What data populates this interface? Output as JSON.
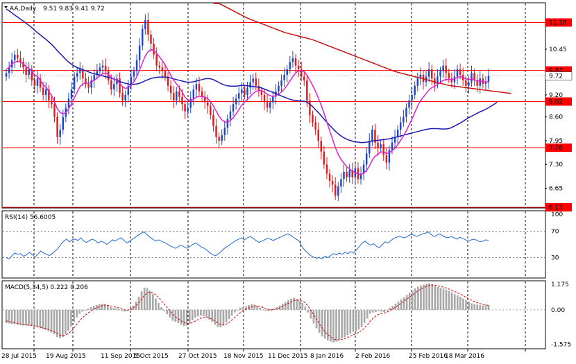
{
  "chart_data": [
    {
      "type": "candlestick",
      "title": "AA,Daily",
      "ohlc_text": "9.51 9.83 9.41 9.72",
      "ylim": [
        6.13,
        11.7
      ],
      "y_ticks": [
        11.18,
        10.45,
        9.87,
        9.72,
        9.2,
        9.02,
        8.6,
        7.95,
        7.76,
        7.3,
        6.65,
        6.13
      ],
      "plain_ticks": [
        "10.45",
        "9.20",
        "8.60",
        "7.95",
        "7.30",
        "6.65"
      ],
      "levels": [
        {
          "value": 11.18,
          "label": "11.18"
        },
        {
          "value": 9.87,
          "label": "9.87"
        },
        {
          "value": 9.02,
          "label": "9.02"
        },
        {
          "value": 7.76,
          "label": "7.76"
        },
        {
          "value": 6.13,
          "label": "6.13"
        }
      ],
      "current_price": {
        "value": 9.72,
        "label": "9.72"
      },
      "x_labels": [
        "28 Jul 2015",
        "19 Aug 2015",
        "11 Sep 2015",
        "5 Oct 2015",
        "27 Oct 2015",
        "18 Nov 2015",
        "11 Dec 2015",
        "8 Jan 2016",
        "2 Feb 2016",
        "25 Feb 2016",
        "18 Mar 2016"
      ],
      "colors": {
        "up": "#1e44c8",
        "down": "#e11919",
        "ma_fast": "#e020d0",
        "ma_mid": "#1a1ab4",
        "ma_slow": "#cc1111",
        "level": "#ff0000"
      },
      "closes": [
        9.8,
        9.95,
        10.15,
        10.3,
        10.2,
        10.1,
        9.95,
        9.75,
        9.9,
        9.6,
        9.45,
        9.65,
        9.4,
        9.2,
        9.35,
        9.05,
        8.95,
        8.6,
        8.05,
        8.25,
        8.6,
        8.85,
        9.1,
        9.35,
        9.7,
        9.8,
        9.9,
        9.65,
        9.5,
        9.4,
        9.6,
        9.75,
        9.85,
        9.95,
        10.0,
        9.85,
        9.6,
        9.35,
        9.5,
        9.65,
        9.25,
        9.05,
        9.2,
        9.45,
        9.7,
        9.85,
        10.15,
        10.55,
        11.0,
        11.25,
        10.85,
        10.6,
        10.3,
        10.0,
        9.95,
        9.85,
        9.7,
        9.45,
        9.25,
        9.05,
        9.3,
        9.15,
        8.95,
        8.75,
        8.85,
        9.1,
        9.35,
        9.5,
        9.3,
        9.15,
        9.0,
        8.9,
        8.65,
        8.35,
        8.05,
        7.95,
        8.1,
        8.3,
        8.55,
        8.75,
        8.95,
        9.1,
        9.25,
        9.35,
        9.2,
        9.4,
        9.55,
        9.65,
        9.45,
        9.3,
        9.2,
        9.0,
        8.85,
        9.0,
        9.15,
        9.3,
        9.45,
        9.6,
        9.75,
        9.9,
        10.1,
        10.2,
        10.0,
        9.9,
        9.7,
        9.6,
        9.05,
        8.65,
        8.45,
        8.25,
        7.95,
        7.65,
        7.3,
        7.05,
        6.85,
        6.75,
        6.45,
        6.7,
        6.9,
        7.1,
        6.95,
        7.15,
        6.95,
        7.2,
        6.9,
        7.05,
        7.3,
        7.6,
        7.95,
        8.25,
        7.9,
        7.75,
        7.85,
        7.55,
        7.35,
        7.7,
        7.9,
        8.05,
        8.25,
        8.45,
        8.6,
        8.85,
        9.05,
        9.2,
        9.45,
        9.65,
        9.75,
        9.55,
        9.7,
        9.9,
        9.65,
        9.5,
        9.7,
        9.85,
        10.0,
        9.8,
        9.65,
        9.55,
        9.7,
        9.9,
        9.75,
        9.6,
        9.45,
        9.55,
        9.8,
        9.6,
        9.45,
        9.65,
        9.5,
        9.55,
        9.72
      ],
      "ma_fast": [
        9.9,
        9.95,
        10.05,
        10.1,
        10.12,
        10.1,
        10.05,
        9.97,
        9.93,
        9.85,
        9.75,
        9.7,
        9.6,
        9.48,
        9.42,
        9.3,
        9.18,
        9.02,
        8.82,
        8.72,
        8.68,
        8.72,
        8.82,
        8.96,
        9.12,
        9.28,
        9.43,
        9.5,
        9.53,
        9.52,
        9.55,
        9.6,
        9.66,
        9.72,
        9.78,
        9.8,
        9.76,
        9.68,
        9.62,
        9.6,
        9.52,
        9.42,
        9.38,
        9.4,
        9.47,
        9.56,
        9.7,
        9.88,
        10.08,
        10.26,
        10.38,
        10.44,
        10.42,
        10.34,
        10.24,
        10.14,
        10.02,
        9.88,
        9.74,
        9.6,
        9.5,
        9.4,
        9.28,
        9.14,
        9.06,
        9.04,
        9.08,
        9.14,
        9.16,
        9.16,
        9.14,
        9.1,
        9.02,
        8.9,
        8.76,
        8.62,
        8.52,
        8.46,
        8.46,
        8.5,
        8.58,
        8.68,
        8.8,
        8.92,
        9.0,
        9.08,
        9.16,
        9.24,
        9.3,
        9.32,
        9.32,
        9.28,
        9.22,
        9.18,
        9.16,
        9.18,
        9.22,
        9.28,
        9.36,
        9.46,
        9.58,
        9.7,
        9.8,
        9.86,
        9.86,
        9.84,
        9.74,
        9.6,
        9.46,
        9.3,
        9.12,
        8.92,
        8.7,
        8.46,
        8.22,
        8.0,
        7.76,
        7.58,
        7.44,
        7.34,
        7.24,
        7.18,
        7.12,
        7.08,
        7.04,
        7.03,
        7.06,
        7.14,
        7.26,
        7.42,
        7.52,
        7.58,
        7.64,
        7.64,
        7.6,
        7.62,
        7.68,
        7.74,
        7.84,
        7.96,
        8.08,
        8.22,
        8.38,
        8.54,
        8.72,
        8.9,
        9.04,
        9.14,
        9.24,
        9.34,
        9.4,
        9.44,
        9.48,
        9.54,
        9.6,
        9.62,
        9.62,
        9.62,
        9.64,
        9.68,
        9.7,
        9.68,
        9.64,
        9.62,
        9.64,
        9.62,
        9.58,
        9.58,
        9.56,
        9.55,
        9.57
      ],
      "ma_mid": [
        11.55,
        11.5,
        11.44,
        11.38,
        11.33,
        11.27,
        11.22,
        11.16,
        11.1,
        11.04,
        10.97,
        10.9,
        10.84,
        10.78,
        10.72,
        10.65,
        10.58,
        10.5,
        10.41,
        10.33,
        10.25,
        10.17,
        10.1,
        10.04,
        9.99,
        9.95,
        9.92,
        9.89,
        9.86,
        9.83,
        9.8,
        9.78,
        9.76,
        9.74,
        9.72,
        9.7,
        9.68,
        9.66,
        9.63,
        9.6,
        9.57,
        9.54,
        9.52,
        9.5,
        9.49,
        9.49,
        9.5,
        9.52,
        9.55,
        9.59,
        9.62,
        9.65,
        9.67,
        9.68,
        9.69,
        9.69,
        9.69,
        9.68,
        9.66,
        9.64,
        9.62,
        9.6,
        9.58,
        9.56,
        9.55,
        9.55,
        9.56,
        9.58,
        9.6,
        9.62,
        9.64,
        9.65,
        9.64,
        9.62,
        9.58,
        9.54,
        9.5,
        9.47,
        9.45,
        9.44,
        9.44,
        9.44,
        9.45,
        9.46,
        9.46,
        9.45,
        9.44,
        9.43,
        9.42,
        9.41,
        9.39,
        9.36,
        9.33,
        9.3,
        9.27,
        9.24,
        9.21,
        9.17,
        9.14,
        9.11,
        9.08,
        9.06,
        9.05,
        9.04,
        9.03,
        9.03,
        9.0,
        8.95,
        8.88,
        8.8,
        8.72,
        8.63,
        8.54,
        8.45,
        8.37,
        8.29,
        8.21,
        8.14,
        8.08,
        8.03,
        7.99,
        7.96,
        7.94,
        7.92,
        7.91,
        7.9,
        7.9,
        7.91,
        7.92,
        7.94,
        7.95,
        7.96,
        7.97,
        7.98,
        7.99,
        8.0,
        8.02,
        8.04,
        8.06,
        8.08,
        8.1,
        8.12,
        8.14,
        8.16,
        8.18,
        8.2,
        8.22,
        8.24,
        8.26,
        8.27,
        8.28,
        8.28,
        8.28,
        8.27,
        8.27,
        8.27,
        8.28,
        8.31,
        8.35,
        8.39,
        8.43,
        8.48,
        8.53,
        8.58,
        8.62,
        8.66,
        8.7,
        8.74,
        8.77,
        8.81,
        8.85,
        8.9,
        8.95,
        9.0
      ],
      "ma_slow": [
        null,
        null,
        null,
        null,
        null,
        null,
        null,
        null,
        null,
        null,
        null,
        null,
        null,
        null,
        null,
        null,
        null,
        null,
        null,
        null,
        null,
        null,
        null,
        null,
        null,
        null,
        null,
        null,
        null,
        null,
        null,
        null,
        null,
        null,
        null,
        null,
        null,
        null,
        null,
        null,
        null,
        null,
        null,
        null,
        null,
        null,
        null,
        null,
        null,
        null,
        null,
        null,
        null,
        null,
        null,
        null,
        null,
        null,
        null,
        null,
        null,
        null,
        null,
        null,
        null,
        null,
        null,
        null,
        null,
        null,
        null,
        null,
        null,
        11.78,
        11.74,
        11.7,
        11.66,
        11.62,
        11.58,
        11.54,
        11.5,
        11.46,
        11.42,
        11.38,
        11.34,
        11.3,
        11.27,
        11.24,
        11.21,
        11.18,
        11.15,
        11.12,
        11.09,
        11.06,
        11.03,
        11.0,
        10.97,
        10.94,
        10.91,
        10.89,
        10.87,
        10.85,
        10.83,
        10.81,
        10.79,
        10.77,
        10.75,
        10.73,
        10.71,
        10.68,
        10.65,
        10.62,
        10.59,
        10.56,
        10.53,
        10.5,
        10.47,
        10.44,
        10.41,
        10.38,
        10.35,
        10.32,
        10.29,
        10.26,
        10.23,
        10.2,
        10.17,
        10.14,
        10.11,
        10.08,
        10.05,
        10.02,
        9.99,
        9.96,
        9.93,
        9.9,
        9.87,
        9.84,
        9.82,
        9.8,
        9.78,
        9.76,
        9.74,
        9.72,
        9.7,
        9.68,
        9.66,
        9.64,
        9.62,
        9.6,
        9.58,
        9.56,
        9.54,
        9.52,
        9.5,
        9.48,
        9.46,
        9.45,
        9.44,
        9.43,
        9.42,
        9.41,
        9.4,
        9.39,
        9.38,
        9.37,
        9.36,
        9.35,
        9.34,
        9.33,
        9.32,
        9.31,
        9.3,
        9.29,
        9.28,
        9.27,
        9.26,
        9.25,
        9.24
      ]
    },
    {
      "type": "line",
      "title": "RSI(14) 56.6005",
      "ylim": [
        0,
        100
      ],
      "y_ticks": [
        100,
        70,
        30,
        0
      ],
      "y_tick_labels": [
        "100",
        "70",
        "30",
        "0"
      ],
      "levels": [
        70,
        30
      ],
      "color": "#1e6ad2",
      "values": [
        30,
        28,
        33,
        37,
        35,
        36,
        32,
        34,
        38,
        35,
        31,
        35,
        40,
        37,
        35,
        33,
        36,
        40,
        44,
        50,
        55,
        58,
        54,
        57,
        58,
        56,
        60,
        55,
        53,
        56,
        58,
        56,
        52,
        55,
        53,
        50,
        53,
        57,
        55,
        58,
        60,
        56,
        52,
        55,
        58,
        61,
        64,
        67,
        69,
        65,
        61,
        58,
        55,
        57,
        55,
        53,
        51,
        48,
        46,
        44,
        47,
        49,
        46,
        44,
        47,
        50,
        52,
        49,
        46,
        44,
        41,
        37,
        34,
        33,
        36,
        40,
        44,
        47,
        50,
        53,
        56,
        58,
        60,
        57,
        60,
        62,
        59,
        56,
        53,
        55,
        57,
        59,
        58,
        56,
        58,
        60,
        62,
        64,
        66,
        64,
        61,
        58,
        55,
        47,
        41,
        37,
        33,
        31,
        29,
        30,
        28,
        32,
        30,
        33,
        36,
        34,
        37,
        35,
        38,
        36,
        39,
        37,
        42,
        47,
        52,
        55,
        51,
        49,
        51,
        47,
        45,
        50,
        54,
        52,
        56,
        59,
        61,
        62,
        61,
        60,
        63,
        65,
        64,
        62,
        64,
        66,
        67,
        69,
        65,
        62,
        64,
        66,
        63,
        61,
        60,
        62,
        60,
        58,
        61,
        59,
        57,
        55,
        57,
        58,
        56,
        54,
        55,
        57,
        56
      ],
      "current_value": 56.6005
    },
    {
      "type": "bar",
      "title": "MACD(5,34,5) 0.222 0.206",
      "ylim": [
        -1.75,
        1.3
      ],
      "y_ticks": [
        1.175,
        0.0,
        -1.575
      ],
      "y_tick_labels": [
        "1.175",
        "0.00",
        "-1.575"
      ],
      "histogram_color": "#a8a8a8",
      "signal_color": "#d80000",
      "macd": [
        -0.6,
        -0.62,
        -0.64,
        -0.66,
        -0.68,
        -0.7,
        -0.72,
        -0.72,
        -0.72,
        -0.74,
        -0.78,
        -0.8,
        -0.84,
        -0.88,
        -0.92,
        -0.98,
        -1.04,
        -1.12,
        -1.25,
        -1.3,
        -1.25,
        -1.12,
        -0.95,
        -0.75,
        -0.55,
        -0.35,
        -0.18,
        -0.08,
        0.0,
        0.06,
        0.12,
        0.18,
        0.22,
        0.26,
        0.28,
        0.26,
        0.2,
        0.12,
        0.08,
        0.06,
        0.02,
        -0.05,
        -0.08,
        -0.05,
        0.05,
        0.2,
        0.38,
        0.6,
        0.85,
        1.02,
        1.0,
        0.88,
        0.72,
        0.52,
        0.32,
        0.12,
        -0.05,
        -0.2,
        -0.35,
        -0.5,
        -0.55,
        -0.6,
        -0.68,
        -0.75,
        -0.72,
        -0.62,
        -0.48,
        -0.36,
        -0.3,
        -0.26,
        -0.28,
        -0.34,
        -0.44,
        -0.55,
        -0.68,
        -0.78,
        -0.8,
        -0.72,
        -0.58,
        -0.42,
        -0.26,
        -0.12,
        0.0,
        0.1,
        0.12,
        0.16,
        0.22,
        0.26,
        0.24,
        0.18,
        0.1,
        0.02,
        -0.05,
        -0.06,
        -0.02,
        0.05,
        0.12,
        0.2,
        0.28,
        0.36,
        0.45,
        0.52,
        0.55,
        0.5,
        0.42,
        0.32,
        0.15,
        -0.12,
        -0.4,
        -0.62,
        -0.85,
        -1.05,
        -1.22,
        -1.32,
        -1.4,
        -1.45,
        -1.5,
        -1.45,
        -1.4,
        -1.3,
        -1.25,
        -1.15,
        -1.1,
        -1.0,
        -0.98,
        -0.9,
        -0.78,
        -0.6,
        -0.4,
        -0.18,
        -0.12,
        -0.1,
        -0.05,
        -0.08,
        -0.1,
        0.0,
        0.1,
        0.18,
        0.28,
        0.38,
        0.48,
        0.58,
        0.68,
        0.78,
        0.88,
        0.98,
        1.06,
        1.12,
        1.15,
        1.2,
        1.22,
        1.18,
        1.1,
        1.05,
        1.02,
        0.98,
        0.92,
        0.86,
        0.8,
        0.72,
        0.66,
        0.6,
        0.52,
        0.45,
        0.38,
        0.3,
        0.26,
        0.24,
        0.22,
        0.2,
        0.21,
        0.222
      ],
      "signal": [
        -0.5,
        -0.53,
        -0.56,
        -0.59,
        -0.62,
        -0.65,
        -0.67,
        -0.69,
        -0.7,
        -0.71,
        -0.73,
        -0.76,
        -0.79,
        -0.82,
        -0.86,
        -0.9,
        -0.95,
        -1.0,
        -1.08,
        -1.15,
        -1.18,
        -1.16,
        -1.09,
        -0.98,
        -0.84,
        -0.67,
        -0.5,
        -0.36,
        -0.24,
        -0.14,
        -0.05,
        0.03,
        0.1,
        0.15,
        0.2,
        0.22,
        0.21,
        0.18,
        0.15,
        0.12,
        0.09,
        0.04,
        0.0,
        -0.01,
        0.01,
        0.08,
        0.18,
        0.32,
        0.5,
        0.67,
        0.78,
        0.81,
        0.78,
        0.69,
        0.57,
        0.42,
        0.26,
        0.11,
        -0.05,
        -0.2,
        -0.32,
        -0.41,
        -0.5,
        -0.58,
        -0.63,
        -0.63,
        -0.58,
        -0.51,
        -0.44,
        -0.38,
        -0.35,
        -0.34,
        -0.37,
        -0.43,
        -0.51,
        -0.6,
        -0.67,
        -0.69,
        -0.65,
        -0.57,
        -0.47,
        -0.35,
        -0.23,
        -0.12,
        -0.04,
        0.03,
        0.09,
        0.15,
        0.18,
        0.18,
        0.15,
        0.11,
        0.06,
        0.02,
        0.01,
        0.02,
        0.05,
        0.1,
        0.16,
        0.23,
        0.3,
        0.37,
        0.43,
        0.45,
        0.44,
        0.4,
        0.32,
        0.17,
        -0.02,
        -0.22,
        -0.43,
        -0.64,
        -0.83,
        -0.99,
        -1.13,
        -1.24,
        -1.33,
        -1.37,
        -1.38,
        -1.35,
        -1.32,
        -1.26,
        -1.21,
        -1.14,
        -1.09,
        -1.03,
        -0.95,
        -0.83,
        -0.69,
        -0.52,
        -0.39,
        -0.29,
        -0.21,
        -0.17,
        -0.15,
        -0.1,
        -0.03,
        0.04,
        0.12,
        0.21,
        0.3,
        0.39,
        0.49,
        0.58,
        0.68,
        0.78,
        0.87,
        0.95,
        1.02,
        1.08,
        1.13,
        1.14,
        1.13,
        1.1,
        1.07,
        1.04,
        1.0,
        0.95,
        0.9,
        0.84,
        0.78,
        0.72,
        0.65,
        0.58,
        0.51,
        0.44,
        0.38,
        0.33,
        0.29,
        0.25,
        0.23,
        0.206
      ]
    }
  ]
}
